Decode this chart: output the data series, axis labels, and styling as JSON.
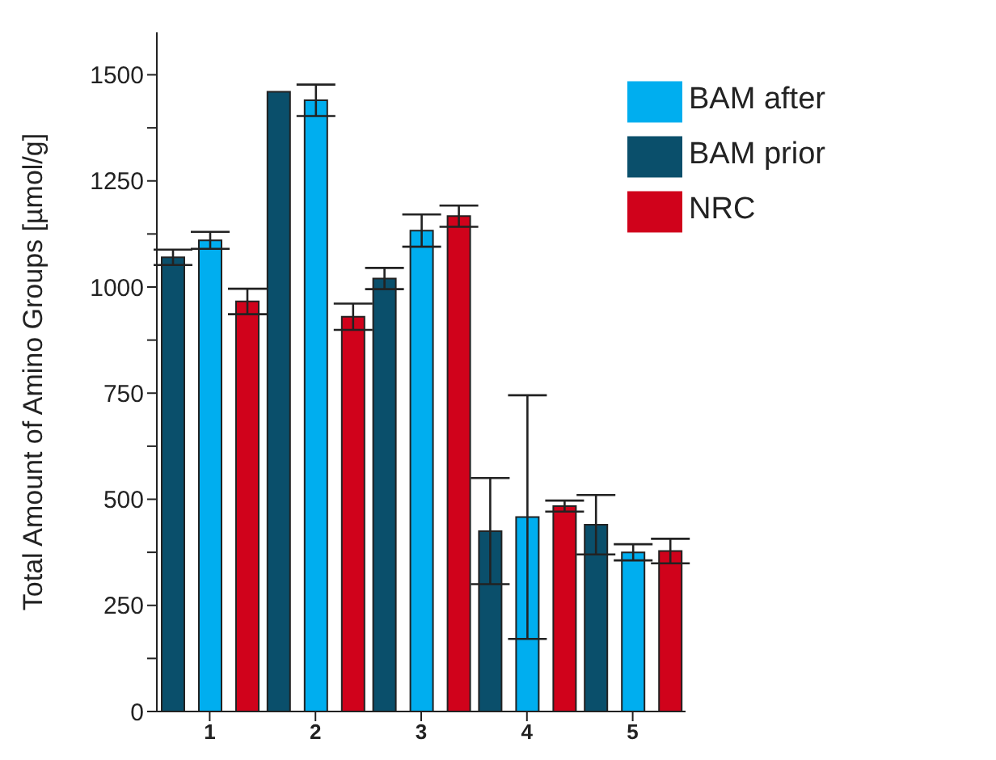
{
  "chart_data": {
    "type": "bar",
    "ylabel": "Total Amount of Amino Groups [µmol/g]",
    "categories": [
      "1",
      "2",
      "3",
      "4",
      "5"
    ],
    "series": [
      {
        "name": "BAM prior",
        "color": "#0a4f6b",
        "values": [
          1070,
          1460,
          1020,
          425,
          440
        ],
        "errors": [
          18,
          0,
          25,
          125,
          70
        ]
      },
      {
        "name": "BAM after",
        "color": "#00aeef",
        "values": [
          1110,
          1440,
          1133,
          458,
          375
        ],
        "errors": [
          20,
          37,
          38,
          287,
          19
        ]
      },
      {
        "name": "NRC",
        "color": "#d0021b",
        "values": [
          966,
          930,
          1167,
          484,
          378
        ],
        "errors": [
          30,
          31,
          25,
          13,
          29
        ]
      }
    ],
    "ylim": [
      0,
      1600
    ],
    "yticks": [
      0,
      {
        "value": 125,
        "label": null
      },
      250,
      {
        "value": 375,
        "label": null
      },
      500,
      {
        "value": 625,
        "label": null
      },
      750,
      {
        "value": 875,
        "label": null
      },
      1000,
      {
        "value": 1125,
        "label": null
      },
      1250,
      {
        "value": 1375,
        "label": null
      },
      1500
    ],
    "legend": "top right",
    "grid": false
  }
}
